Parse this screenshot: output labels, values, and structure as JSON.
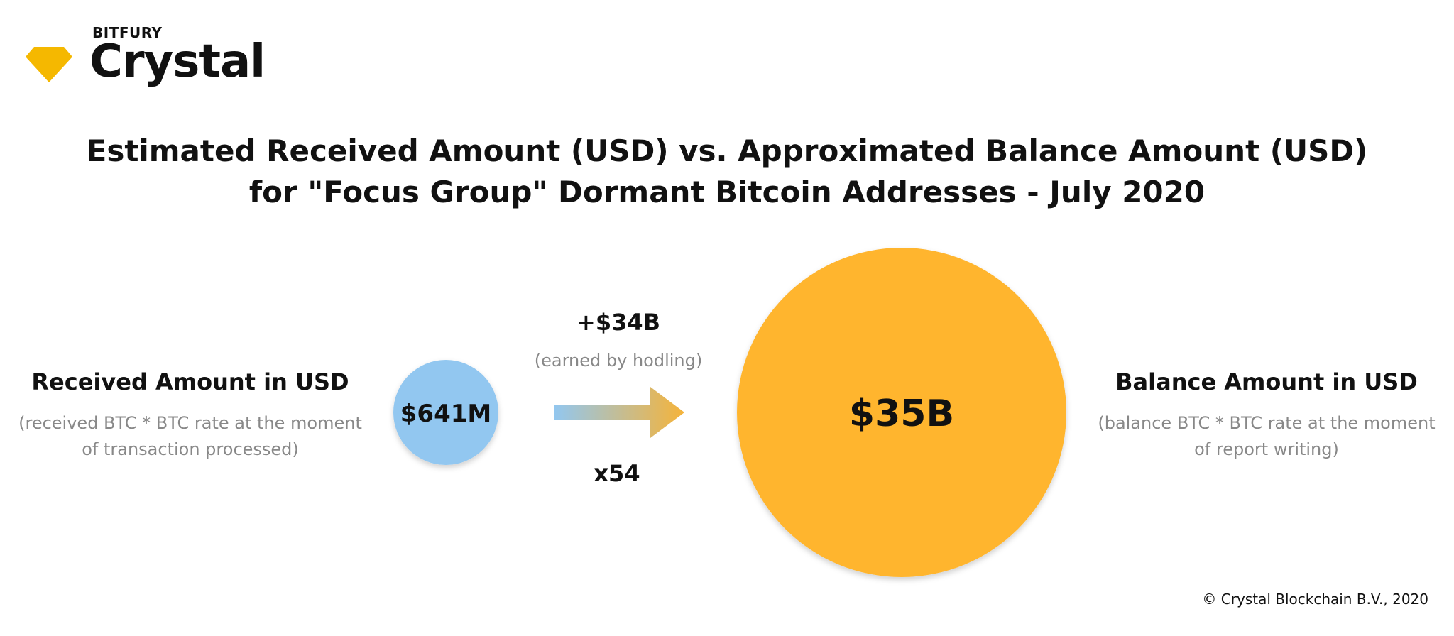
{
  "logo": {
    "brand_small": "BITFURY",
    "brand_big": "Crystal",
    "gem_color": "#F5B800"
  },
  "chart_data": {
    "type": "bubble-comparison",
    "title": "Estimated Received Amount (USD) vs. Approximated Balance Amount (USD)",
    "subtitle": "for \"Focus Group\" Dormant Bitcoin Addresses - July 2020",
    "bubbles": [
      {
        "id": "received",
        "value_usd": 641000000,
        "value_label": "$641M",
        "label": "Received Amount in USD",
        "note": [
          "(received BTC * BTC rate at the moment",
          "of transaction processed)"
        ],
        "color": "#92C7F0"
      },
      {
        "id": "balance",
        "value_usd": 35000000000,
        "value_label": "$35B",
        "label": "Balance Amount in USD",
        "note": [
          "(balance BTC * BTC rate at the moment",
          "of report writing)"
        ],
        "color": "#FFB52E"
      }
    ],
    "arrow": {
      "gain_label": "+$34B",
      "gain_note": "(earned by hodling)",
      "multiplier_label": "x54",
      "gradient_from": "#92C7F0",
      "gradient_to": "#F5B33A"
    }
  },
  "footer": {
    "copyright": "© Crystal Blockchain B.V., 2020"
  }
}
